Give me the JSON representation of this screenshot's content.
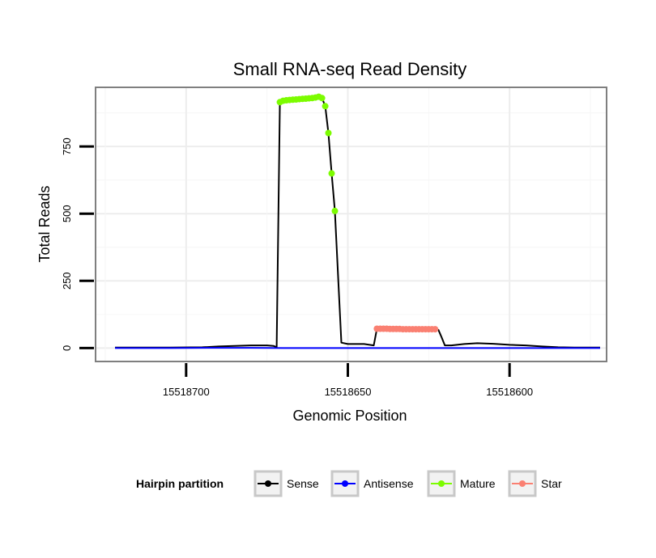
{
  "chart_data": {
    "type": "line",
    "title": "Small RNA-seq Read Density",
    "xlabel": "Genomic Position",
    "ylabel": "Total Reads",
    "xlim": [
      15518728,
      15518570
    ],
    "ylim": [
      -50,
      970
    ],
    "x_reversed": true,
    "x_ticks": [
      15518700,
      15518650,
      15518600
    ],
    "x_tick_labels": [
      "15518700",
      "15518650",
      "15518600"
    ],
    "y_ticks": [
      0,
      250,
      500,
      750
    ],
    "y_tick_labels": [
      "0",
      "250",
      "500",
      "750"
    ],
    "grid": true,
    "legend_position": "bottom",
    "legend_title": "Hairpin partition",
    "colors": {
      "Sense": "#000000",
      "Antisense": "#0000ff",
      "Mature": "#7cfc00",
      "Star": "#fa8072"
    },
    "series": [
      {
        "name": "Sense",
        "x": [
          15518722,
          15518715,
          15518705,
          15518695,
          15518690,
          15518680,
          15518675,
          15518673,
          15518672,
          15518671,
          15518670,
          15518669,
          15518668,
          15518666,
          15518664,
          15518662,
          15518660,
          15518659,
          15518658,
          15518657,
          15518656,
          15518655,
          15518654,
          15518652,
          15518650,
          15518647,
          15518645,
          15518642,
          15518641,
          15518640,
          15518635,
          15518630,
          15518625,
          15518623,
          15518622,
          15518621,
          15518620,
          15518618,
          15518614,
          15518610,
          15518605,
          15518600,
          15518595,
          15518590,
          15518585,
          15518580,
          15518575,
          15518572
        ],
        "values": [
          2,
          2,
          2,
          3,
          6,
          10,
          10,
          8,
          3,
          915,
          920,
          922,
          925,
          927,
          928,
          930,
          932,
          935,
          930,
          900,
          800,
          650,
          510,
          20,
          15,
          15,
          15,
          10,
          72,
          72,
          72,
          70,
          70,
          70,
          68,
          40,
          10,
          10,
          15,
          18,
          16,
          12,
          10,
          6,
          3,
          2,
          2,
          2
        ]
      },
      {
        "name": "Antisense",
        "x": [
          15518722,
          15518705,
          15518690,
          15518680,
          15518670,
          15518655,
          15518640,
          15518620,
          15518600,
          15518580,
          15518572
        ],
        "values": [
          0,
          0,
          1,
          1,
          0,
          0,
          0,
          0,
          0,
          0,
          0
        ]
      },
      {
        "name": "Mature",
        "x": [
          15518671,
          15518670,
          15518669,
          15518668,
          15518667,
          15518666,
          15518665,
          15518664,
          15518663,
          15518662,
          15518661,
          15518660,
          15518659,
          15518658,
          15518657,
          15518656,
          15518655,
          15518654
        ],
        "values": [
          915,
          920,
          922,
          923,
          924,
          925,
          926,
          927,
          928,
          929,
          930,
          932,
          935,
          930,
          900,
          800,
          650,
          510
        ]
      },
      {
        "name": "Star",
        "x": [
          15518641,
          15518640,
          15518639,
          15518638,
          15518637,
          15518636,
          15518635,
          15518634,
          15518633,
          15518632,
          15518631,
          15518630,
          15518629,
          15518628,
          15518627,
          15518626,
          15518625,
          15518624,
          15518623
        ],
        "values": [
          72,
          72,
          72,
          72,
          71,
          71,
          71,
          71,
          70,
          70,
          70,
          70,
          70,
          70,
          70,
          70,
          70,
          70,
          70
        ]
      }
    ]
  }
}
